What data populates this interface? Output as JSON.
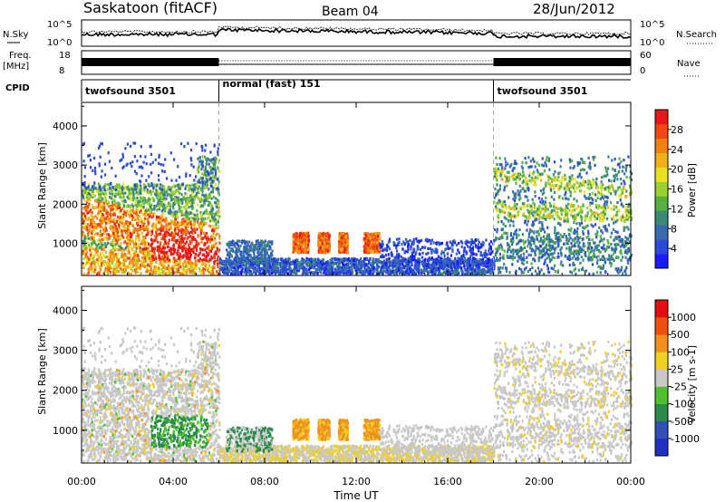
{
  "header": {
    "station": "Saskatoon (fitACF)",
    "beam": "Beam 04",
    "date": "28/Jun/2012"
  },
  "top_panel": {
    "nsky_label": "N.Sky",
    "nsearch_label": "N.Search",
    "freq_label": "Freq.",
    "freq_unit": "[MHz]",
    "nave_label": "Nave",
    "cpid_label": "CPID",
    "nsky_ticks": [
      "10^5",
      "10^0"
    ],
    "nsearch_ticks": [
      "10^5",
      "10^0"
    ],
    "freq_ticks": [
      "18",
      "8"
    ],
    "nave_ticks": [
      "60",
      "0"
    ]
  },
  "cpid_segments": [
    {
      "label": "twofsound 3501",
      "start_h": 0,
      "end_h": 6
    },
    {
      "label": "normal (fast) 151",
      "start_h": 6,
      "end_h": 18
    },
    {
      "label": "twofsound 3501",
      "start_h": 18,
      "end_h": 24
    }
  ],
  "chart_data": [
    {
      "type": "heatmap",
      "quantity": "power",
      "ylabel": "Slant Range [km]",
      "ylim": [
        180,
        4600
      ],
      "yticks": [
        "1000",
        "2000",
        "3000",
        "4000"
      ],
      "xlim": [
        0,
        24
      ],
      "colorbar": {
        "label": "Power [dB]",
        "ticks": [
          "4",
          "8",
          "12",
          "16",
          "20",
          "24",
          "28"
        ],
        "range": [
          0,
          32
        ],
        "colors": [
          "#1a1aff",
          "#2a4ad8",
          "#3a6ab0",
          "#3a8a78",
          "#58b040",
          "#9ad030",
          "#e8e020",
          "#f0b018",
          "#f08010",
          "#f04810",
          "#e81818"
        ]
      }
    },
    {
      "type": "heatmap",
      "quantity": "velocity",
      "ylabel": "Slant Range [km]",
      "ylim": [
        180,
        4600
      ],
      "yticks": [
        "1000",
        "2000",
        "3000",
        "4000"
      ],
      "xlim": [
        0,
        24
      ],
      "xticks": [
        "00:00",
        "04:00",
        "08:00",
        "12:00",
        "16:00",
        "20:00",
        "00:00"
      ],
      "xlabel": "Time UT",
      "colorbar": {
        "label": "Velocity [m s-1]",
        "ticks": [
          "1000",
          "500",
          "100",
          "25",
          "-25",
          "-100",
          "-500",
          "-1000"
        ],
        "colors": [
          "#2030c0",
          "#3050b8",
          "#2a8a4a",
          "#50c030",
          "#c8c8c8",
          "#f0d020",
          "#f09020",
          "#f05010",
          "#e01010"
        ]
      }
    }
  ]
}
